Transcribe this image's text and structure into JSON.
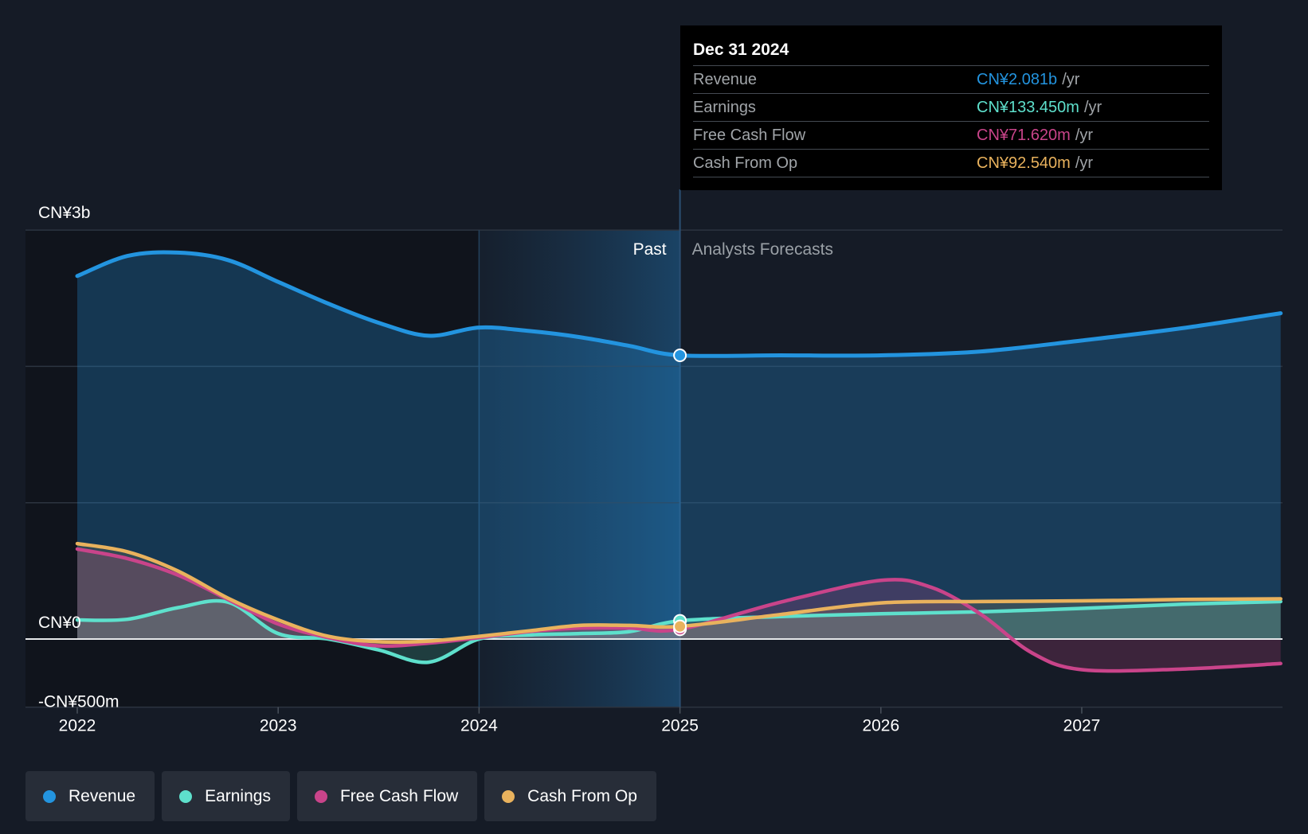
{
  "chart_data": {
    "type": "area",
    "x_ticks": [
      "2022",
      "2023",
      "2024",
      "2025",
      "2026",
      "2027"
    ],
    "y_labels": [
      {
        "value": 3000,
        "label": "CN¥3b"
      },
      {
        "value": 0,
        "label": "CN¥0"
      },
      {
        "value": -500,
        "label": "-CN¥500m"
      }
    ],
    "ylim": [
      -500,
      3000
    ],
    "xlim": [
      2021.75,
      2027.99
    ],
    "region_labels": {
      "past": "Past",
      "forecast": "Analysts Forecasts"
    },
    "divider_x": 2025.0,
    "grid": true,
    "series": [
      {
        "name": "Revenue",
        "color": "#2394df",
        "points": [
          [
            2022.0,
            2663
          ],
          [
            2022.25,
            2810
          ],
          [
            2022.5,
            2835
          ],
          [
            2022.75,
            2780
          ],
          [
            2023.0,
            2620
          ],
          [
            2023.25,
            2460
          ],
          [
            2023.5,
            2320
          ],
          [
            2023.75,
            2225
          ],
          [
            2024.0,
            2285
          ],
          [
            2024.25,
            2260
          ],
          [
            2024.5,
            2215
          ],
          [
            2024.75,
            2150
          ],
          [
            2025.0,
            2081
          ],
          [
            2025.5,
            2081
          ],
          [
            2026.0,
            2081
          ],
          [
            2026.5,
            2110
          ],
          [
            2027.0,
            2190
          ],
          [
            2027.5,
            2280
          ],
          [
            2027.99,
            2390
          ]
        ]
      },
      {
        "name": "Earnings",
        "color": "#5ee0cc",
        "points": [
          [
            2022.0,
            140
          ],
          [
            2022.25,
            145
          ],
          [
            2022.5,
            230
          ],
          [
            2022.75,
            270
          ],
          [
            2023.0,
            40
          ],
          [
            2023.25,
            0
          ],
          [
            2023.5,
            -80
          ],
          [
            2023.75,
            -170
          ],
          [
            2024.0,
            0
          ],
          [
            2024.25,
            30
          ],
          [
            2024.5,
            40
          ],
          [
            2024.75,
            55
          ],
          [
            2025.0,
            133.45
          ],
          [
            2025.5,
            165
          ],
          [
            2026.0,
            185
          ],
          [
            2026.5,
            200
          ],
          [
            2027.0,
            225
          ],
          [
            2027.5,
            255
          ],
          [
            2027.99,
            275
          ]
        ]
      },
      {
        "name": "Free Cash Flow",
        "color": "#c9448a",
        "points": [
          [
            2022.0,
            660
          ],
          [
            2022.25,
            590
          ],
          [
            2022.5,
            470
          ],
          [
            2022.75,
            290
          ],
          [
            2023.0,
            110
          ],
          [
            2023.25,
            10
          ],
          [
            2023.5,
            -50
          ],
          [
            2023.75,
            -30
          ],
          [
            2024.0,
            10
          ],
          [
            2024.25,
            55
          ],
          [
            2024.5,
            80
          ],
          [
            2024.75,
            80
          ],
          [
            2025.0,
            71.62
          ],
          [
            2025.5,
            270
          ],
          [
            2026.0,
            430
          ],
          [
            2026.25,
            380
          ],
          [
            2026.5,
            180
          ],
          [
            2026.75,
            -100
          ],
          [
            2027.0,
            -225
          ],
          [
            2027.5,
            -220
          ],
          [
            2027.99,
            -180
          ]
        ]
      },
      {
        "name": "Cash From Op",
        "color": "#e9b25d",
        "points": [
          [
            2022.0,
            700
          ],
          [
            2022.25,
            640
          ],
          [
            2022.5,
            500
          ],
          [
            2022.75,
            300
          ],
          [
            2023.0,
            140
          ],
          [
            2023.25,
            20
          ],
          [
            2023.5,
            -20
          ],
          [
            2023.75,
            -15
          ],
          [
            2024.0,
            20
          ],
          [
            2024.25,
            60
          ],
          [
            2024.5,
            100
          ],
          [
            2024.75,
            100
          ],
          [
            2025.0,
            92.54
          ],
          [
            2025.5,
            180
          ],
          [
            2026.0,
            265
          ],
          [
            2026.5,
            275
          ],
          [
            2027.0,
            280
          ],
          [
            2027.5,
            290
          ],
          [
            2027.99,
            295
          ]
        ]
      }
    ],
    "tooltip": {
      "date": "Dec 31 2024",
      "rows": [
        {
          "label": "Revenue",
          "value": "CN¥2.081b",
          "unit": "/yr",
          "color": "#2394df"
        },
        {
          "label": "Earnings",
          "value": "CN¥133.450m",
          "unit": "/yr",
          "color": "#5ee0cc"
        },
        {
          "label": "Free Cash Flow",
          "value": "CN¥71.620m",
          "unit": "/yr",
          "color": "#c9448a"
        },
        {
          "label": "Cash From Op",
          "value": "CN¥92.540m",
          "unit": "/yr",
          "color": "#e9b25d"
        }
      ]
    },
    "legend": [
      "Revenue",
      "Earnings",
      "Free Cash Flow",
      "Cash From Op"
    ]
  }
}
